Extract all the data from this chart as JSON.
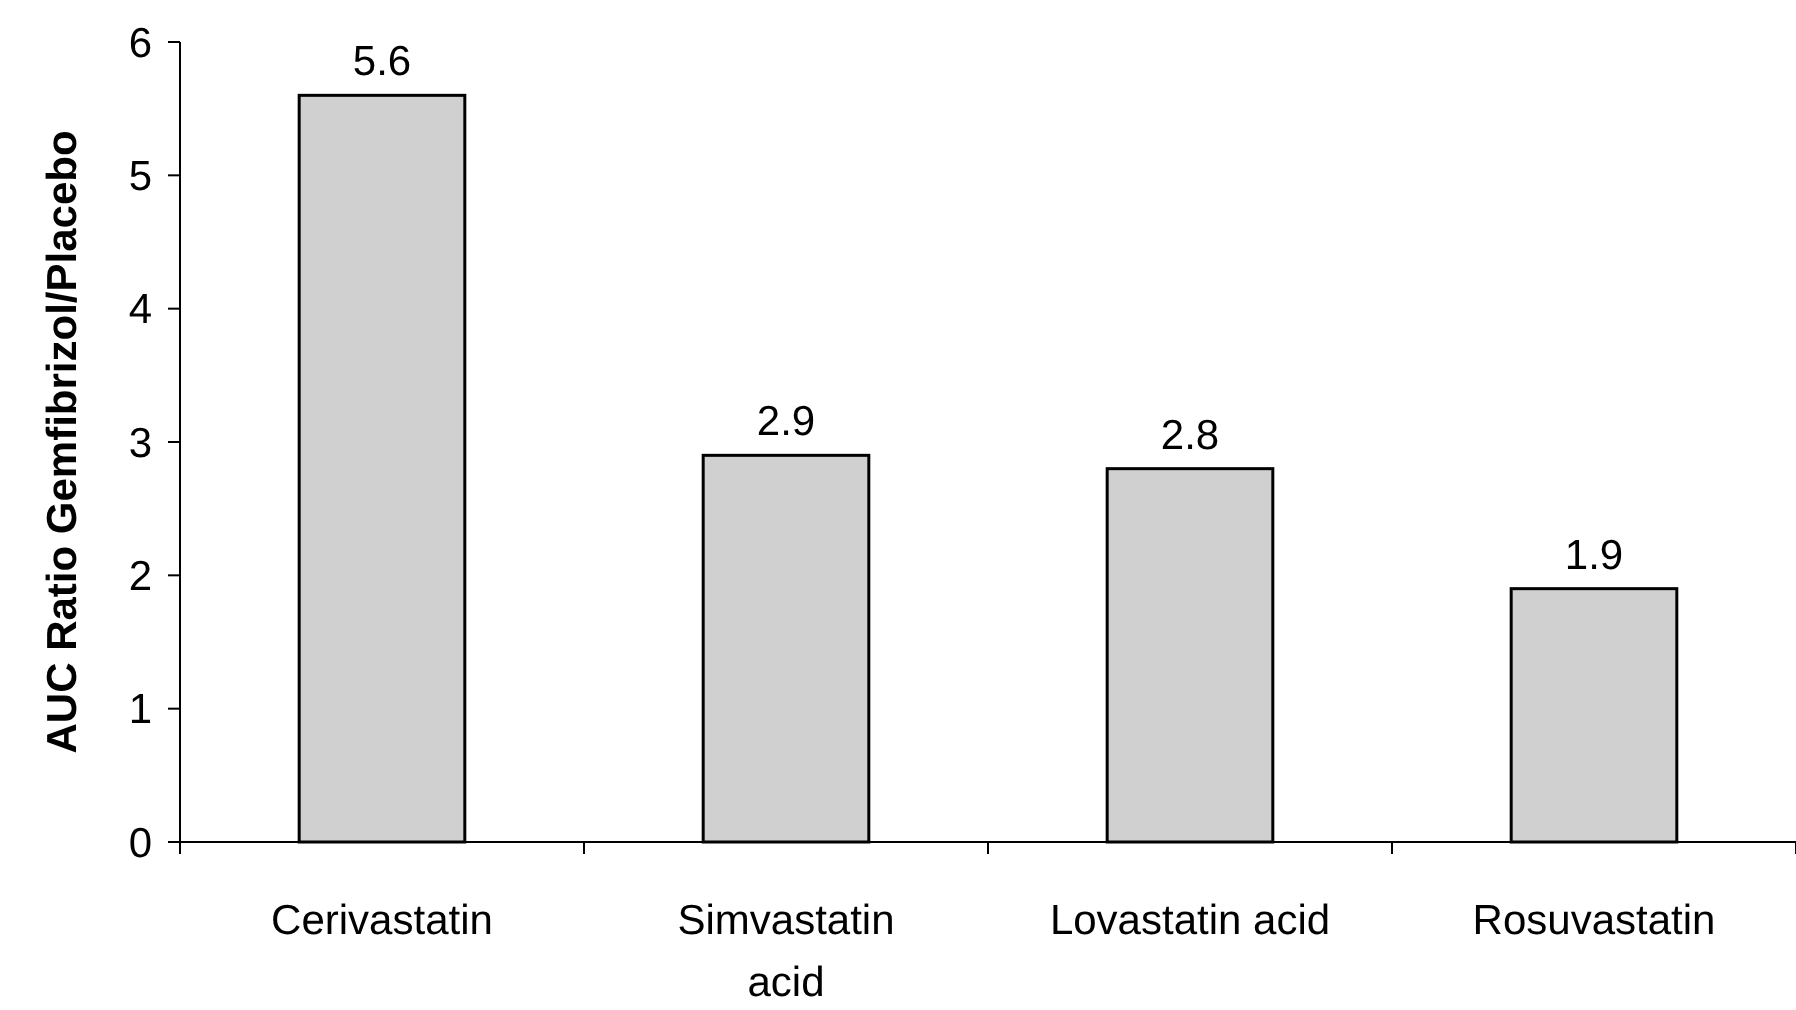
{
  "chart_data": {
    "type": "bar",
    "ylabel": "AUC Ratio Gemfibrizol/Placebo",
    "categories": [
      "Cerivastatin",
      "Simvastatin acid",
      "Lovastatin acid",
      "Rosuvastatin"
    ],
    "values": [
      5.6,
      2.9,
      2.8,
      1.9
    ],
    "color": "#d0d0d0",
    "ylim": [
      0,
      6
    ],
    "yticks": [
      0,
      1,
      2,
      3,
      4,
      5,
      6
    ],
    "data_labels": true,
    "grid": false
  }
}
